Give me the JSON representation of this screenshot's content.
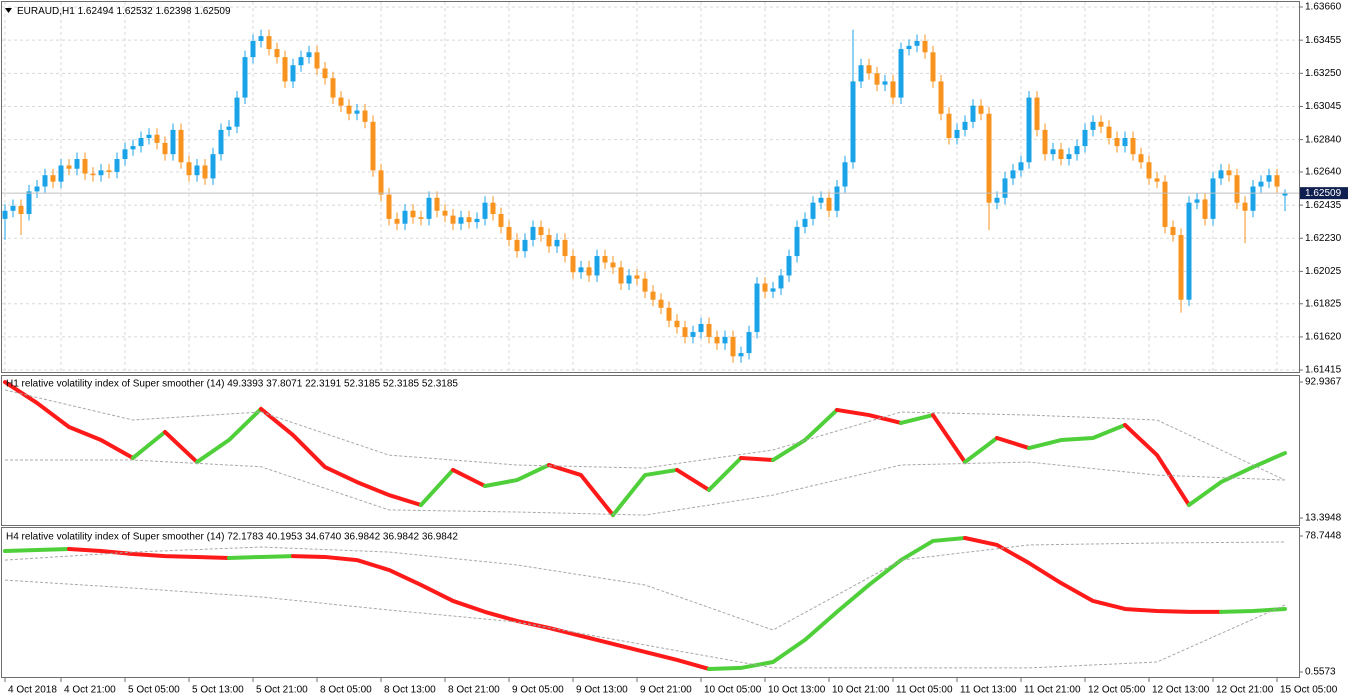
{
  "chart_data": [
    {
      "type": "candlestick",
      "title": "EURAUD,H1",
      "categories": [
        "4 Oct 2018",
        null,
        null,
        null,
        null,
        null,
        null,
        "4 Oct 21:00",
        null,
        null,
        null,
        null,
        null,
        null,
        null,
        "5 Oct 05:00",
        null,
        null,
        null,
        null,
        null,
        null,
        null,
        "5 Oct 13:00",
        null,
        null,
        null,
        null,
        null,
        null,
        null,
        "5 Oct 21:00",
        null,
        null,
        null,
        null,
        null,
        null,
        null,
        "8 Oct 05:00",
        null,
        null,
        null,
        null,
        null,
        null,
        null,
        "8 Oct 13:00",
        null,
        null,
        null,
        null,
        null,
        null,
        null,
        "8 Oct 21:00",
        null,
        null,
        null,
        null,
        null,
        null,
        null,
        "9 Oct 05:00",
        null,
        null,
        null,
        null,
        null,
        null,
        null,
        "9 Oct 13:00",
        null,
        null,
        null,
        null,
        null,
        null,
        null,
        "9 Oct 21:00",
        null,
        null,
        null,
        null,
        null,
        null,
        null,
        "10 Oct 05:00",
        null,
        null,
        null,
        null,
        null,
        null,
        null,
        "10 Oct 13:00",
        null,
        null,
        null,
        null,
        null,
        null,
        null,
        "10 Oct 21:00",
        null,
        null,
        null,
        null,
        null,
        null,
        null,
        "11 Oct 05:00",
        null,
        null,
        null,
        null,
        null,
        null,
        null,
        "11 Oct 13:00",
        null,
        null,
        null,
        null,
        null,
        null,
        null,
        "11 Oct 21:00",
        null,
        null,
        null,
        null,
        null,
        null,
        null,
        "12 Oct 05:00",
        null,
        null,
        null,
        null,
        null,
        null,
        null,
        "12 Oct 13:00",
        null,
        null,
        null,
        null,
        null,
        null,
        null,
        "12 Oct 21:00",
        null,
        null,
        null,
        null,
        null,
        null,
        null,
        "15 Oct 05:00",
        null
      ],
      "open": [
        1.6235,
        1.624,
        1.6243,
        1.6238,
        1.6252,
        1.6255,
        1.6262,
        1.6258,
        1.6268,
        1.6266,
        1.6272,
        1.6263,
        1.6262,
        1.6265,
        1.6264,
        1.6272,
        1.6278,
        1.628,
        1.6285,
        1.6287,
        1.6282,
        1.6275,
        1.629,
        1.627,
        1.6262,
        1.6268,
        1.626,
        1.6275,
        1.629,
        1.6292,
        1.631,
        1.6335,
        1.6345,
        1.6348,
        1.634,
        1.6335,
        1.632,
        1.633,
        1.6335,
        1.6338,
        1.6328,
        1.6322,
        1.631,
        1.6305,
        1.63,
        1.6302,
        1.6295,
        1.6265,
        1.625,
        1.6235,
        1.6232,
        1.624,
        1.6236,
        1.6235,
        1.6248,
        1.624,
        1.6237,
        1.6232,
        1.6236,
        1.6233,
        1.6235,
        1.6245,
        1.6238,
        1.623,
        1.6222,
        1.6215,
        1.6222,
        1.623,
        1.6225,
        1.6218,
        1.6222,
        1.6212,
        1.6202,
        1.6205,
        1.62,
        1.6212,
        1.6208,
        1.6205,
        1.6195,
        1.62,
        1.6198,
        1.619,
        1.6185,
        1.618,
        1.6172,
        1.6168,
        1.6162,
        1.6165,
        1.617,
        1.6162,
        1.6158,
        1.6162,
        1.615,
        1.6152,
        1.6165,
        1.6195,
        1.619,
        1.6192,
        1.62,
        1.6212,
        1.623,
        1.6235,
        1.6245,
        1.6248,
        1.624,
        1.6255,
        1.627,
        1.632,
        1.633,
        1.6325,
        1.6318,
        1.632,
        1.631,
        1.634,
        1.6342,
        1.6345,
        1.6338,
        1.632,
        1.63,
        1.6285,
        1.629,
        1.6295,
        1.6305,
        1.63,
        1.6245,
        1.6248,
        1.626,
        1.6265,
        1.627,
        1.631,
        1.629,
        1.6275,
        1.6278,
        1.6272,
        1.6275,
        1.628,
        1.629,
        1.6295,
        1.6292,
        1.6285,
        1.628,
        1.6285,
        1.6275,
        1.627,
        1.626,
        1.6258,
        1.623,
        1.6225,
        1.6185,
        1.6245,
        1.6247,
        1.6235,
        1.626,
        1.6265,
        1.6262,
        1.6245,
        1.624,
        1.6255,
        1.6258,
        1.6262,
        1.62494
      ],
      "high": [
        1.6244,
        1.6247,
        1.6247,
        1.6256,
        1.6259,
        1.6266,
        1.6266,
        1.6272,
        1.6272,
        1.6276,
        1.6276,
        1.6267,
        1.6269,
        1.6269,
        1.6276,
        1.6282,
        1.6284,
        1.6289,
        1.6291,
        1.6291,
        1.6286,
        1.6294,
        1.6294,
        1.6274,
        1.6272,
        1.6272,
        1.6279,
        1.6294,
        1.6296,
        1.6314,
        1.6339,
        1.6349,
        1.6352,
        1.6352,
        1.6344,
        1.6339,
        1.6334,
        1.6339,
        1.6342,
        1.6342,
        1.6332,
        1.6326,
        1.6314,
        1.6309,
        1.6306,
        1.6306,
        1.6299,
        1.6269,
        1.6254,
        1.6239,
        1.6244,
        1.6244,
        1.624,
        1.6252,
        1.6252,
        1.6244,
        1.6241,
        1.624,
        1.624,
        1.6239,
        1.6249,
        1.6249,
        1.6242,
        1.6234,
        1.6226,
        1.6226,
        1.6234,
        1.6234,
        1.6229,
        1.6226,
        1.6226,
        1.6216,
        1.6209,
        1.6209,
        1.6216,
        1.6216,
        1.6212,
        1.6209,
        1.6204,
        1.6204,
        1.6202,
        1.6194,
        1.6189,
        1.6184,
        1.6176,
        1.6172,
        1.6169,
        1.6174,
        1.6174,
        1.6166,
        1.6166,
        1.6166,
        1.6156,
        1.6169,
        1.6199,
        1.6199,
        1.6196,
        1.6204,
        1.6216,
        1.6234,
        1.6239,
        1.6249,
        1.6252,
        1.6252,
        1.6259,
        1.6274,
        1.6352,
        1.6334,
        1.6334,
        1.6329,
        1.6324,
        1.6324,
        1.6344,
        1.6346,
        1.6349,
        1.6349,
        1.6342,
        1.6324,
        1.6304,
        1.6294,
        1.6299,
        1.6309,
        1.6309,
        1.6304,
        1.6252,
        1.6264,
        1.6269,
        1.6274,
        1.6314,
        1.6314,
        1.6294,
        1.6282,
        1.6282,
        1.6279,
        1.6284,
        1.6294,
        1.6299,
        1.6299,
        1.6296,
        1.6289,
        1.6289,
        1.6289,
        1.6279,
        1.6274,
        1.6264,
        1.6262,
        1.6234,
        1.6229,
        1.6249,
        1.6251,
        1.6251,
        1.6264,
        1.6269,
        1.6269,
        1.6266,
        1.6249,
        1.6259,
        1.6262,
        1.6266,
        1.6266,
        1.62532
      ],
      "low": [
        1.6222,
        1.6236,
        1.6225,
        1.6234,
        1.6248,
        1.6251,
        1.6254,
        1.6254,
        1.6262,
        1.6262,
        1.6259,
        1.6258,
        1.6258,
        1.626,
        1.626,
        1.6268,
        1.6274,
        1.6276,
        1.6281,
        1.6278,
        1.6271,
        1.6271,
        1.6266,
        1.6258,
        1.6258,
        1.6256,
        1.6256,
        1.6271,
        1.6286,
        1.6288,
        1.6306,
        1.6331,
        1.6341,
        1.6336,
        1.6331,
        1.6316,
        1.6316,
        1.6326,
        1.6331,
        1.6324,
        1.6318,
        1.6306,
        1.6301,
        1.6296,
        1.6296,
        1.6291,
        1.6261,
        1.6246,
        1.6231,
        1.6228,
        1.6228,
        1.6232,
        1.6231,
        1.6231,
        1.6236,
        1.6233,
        1.6228,
        1.6228,
        1.6229,
        1.6229,
        1.6231,
        1.6234,
        1.6226,
        1.6218,
        1.6211,
        1.6211,
        1.6218,
        1.6221,
        1.6214,
        1.6214,
        1.6208,
        1.6198,
        1.6198,
        1.6196,
        1.6196,
        1.6204,
        1.6201,
        1.6191,
        1.6191,
        1.6194,
        1.6186,
        1.6181,
        1.6176,
        1.6168,
        1.6164,
        1.6158,
        1.6158,
        1.6161,
        1.6158,
        1.6154,
        1.6154,
        1.6146,
        1.6146,
        1.6148,
        1.6161,
        1.6186,
        1.6186,
        1.6188,
        1.6196,
        1.6208,
        1.6226,
        1.6231,
        1.6241,
        1.6236,
        1.6236,
        1.6251,
        1.6266,
        1.6316,
        1.6321,
        1.6314,
        1.6314,
        1.6306,
        1.6306,
        1.6336,
        1.6338,
        1.6334,
        1.6316,
        1.6296,
        1.6281,
        1.6281,
        1.6286,
        1.6291,
        1.6296,
        1.6228,
        1.6241,
        1.6244,
        1.6256,
        1.6261,
        1.6266,
        1.6286,
        1.6271,
        1.6271,
        1.6268,
        1.6268,
        1.6271,
        1.6276,
        1.6286,
        1.6288,
        1.6281,
        1.6276,
        1.6276,
        1.6271,
        1.6266,
        1.6256,
        1.6254,
        1.6226,
        1.6221,
        1.6177,
        1.6181,
        1.6241,
        1.6231,
        1.6231,
        1.6256,
        1.6258,
        1.6241,
        1.622,
        1.6236,
        1.6251,
        1.6254,
        1.6251,
        1.62398
      ],
      "close": [
        1.624,
        1.6243,
        1.6238,
        1.6252,
        1.6255,
        1.6262,
        1.6258,
        1.6268,
        1.6266,
        1.6272,
        1.6263,
        1.6262,
        1.6265,
        1.6264,
        1.6272,
        1.6278,
        1.628,
        1.6285,
        1.6287,
        1.6282,
        1.6275,
        1.629,
        1.627,
        1.6262,
        1.6268,
        1.626,
        1.6275,
        1.629,
        1.6292,
        1.631,
        1.6335,
        1.6345,
        1.6348,
        1.634,
        1.6335,
        1.632,
        1.633,
        1.6335,
        1.6338,
        1.6328,
        1.6322,
        1.631,
        1.6305,
        1.63,
        1.6302,
        1.6295,
        1.6265,
        1.625,
        1.6235,
        1.6232,
        1.624,
        1.6236,
        1.6235,
        1.6248,
        1.624,
        1.6237,
        1.6232,
        1.6236,
        1.6233,
        1.6235,
        1.6245,
        1.6238,
        1.623,
        1.6222,
        1.6215,
        1.6222,
        1.623,
        1.6225,
        1.6218,
        1.6222,
        1.6212,
        1.6202,
        1.6205,
        1.62,
        1.6212,
        1.6208,
        1.6205,
        1.6195,
        1.62,
        1.6198,
        1.619,
        1.6185,
        1.618,
        1.6172,
        1.6168,
        1.6162,
        1.6165,
        1.617,
        1.6162,
        1.6158,
        1.6162,
        1.615,
        1.6152,
        1.6165,
        1.6195,
        1.619,
        1.6192,
        1.62,
        1.6212,
        1.623,
        1.6235,
        1.6245,
        1.6248,
        1.624,
        1.6255,
        1.627,
        1.632,
        1.633,
        1.6325,
        1.6318,
        1.632,
        1.631,
        1.634,
        1.6342,
        1.6345,
        1.6338,
        1.632,
        1.63,
        1.6285,
        1.629,
        1.6295,
        1.6305,
        1.63,
        1.6245,
        1.6248,
        1.626,
        1.6265,
        1.627,
        1.631,
        1.629,
        1.6275,
        1.6278,
        1.6272,
        1.6275,
        1.628,
        1.629,
        1.6295,
        1.6292,
        1.6285,
        1.628,
        1.6285,
        1.6275,
        1.627,
        1.626,
        1.6258,
        1.623,
        1.6225,
        1.6185,
        1.6245,
        1.6247,
        1.6235,
        1.626,
        1.6265,
        1.6262,
        1.6245,
        1.624,
        1.6255,
        1.6258,
        1.6262,
        1.6255,
        1.62509
      ],
      "up_color": "#1ba3e8",
      "down_color": "#f7931e",
      "ylim": [
        1.61403,
        1.63691
      ],
      "yticks": [
        {
          "value": 1.6366,
          "label": "1.63660"
        },
        {
          "value": 1.63455,
          "label": "1.63455"
        },
        {
          "value": 1.6325,
          "label": "1.63250"
        },
        {
          "value": 1.63045,
          "label": "1.63045"
        },
        {
          "value": 1.6284,
          "label": "1.62840"
        },
        {
          "value": 1.6264,
          "label": "1.62640"
        },
        {
          "value": 1.62435,
          "label": "1.62435"
        },
        {
          "value": 1.6223,
          "label": "1.62230"
        },
        {
          "value": 1.62025,
          "label": "1.62025"
        },
        {
          "value": 1.61825,
          "label": "1.61825"
        },
        {
          "value": 1.6162,
          "label": "1.61620"
        },
        {
          "value": 1.61415,
          "label": "1.61415"
        }
      ],
      "grid": true
    },
    {
      "type": "line",
      "title": "H1 relative volatility index of Super smoother (14) 49.3393 37.8071 22.3191 52.3185 52.3185 52.3185",
      "ylim": [
        9.3,
        96.45
      ],
      "yticks": [
        92.9367,
        13.3948
      ],
      "series": [
        {
          "values": [
            92.9,
            80.7,
            66.6,
            59.0,
            48.5,
            63.7,
            46.1,
            59.0,
            77.2,
            61.9,
            43.2,
            34.4,
            26.8,
            21.0,
            41.5,
            32.1,
            35.6,
            44.4,
            38.5,
            15.1,
            38.5,
            41.5,
            29.8,
            48.5,
            47.3,
            59.0,
            76.6,
            73.6,
            69.0,
            73.6,
            46.1,
            60.2,
            54.3,
            59.0,
            60.2,
            67.8,
            50.2,
            21.0,
            34.4,
            43.2,
            51.4
          ],
          "up_color": "#4fcf3a",
          "down_color": "#ff1a1a"
        },
        {
          "values": [
            88.3,
            70.7,
            75.4,
            50.2,
            44.4,
            42.6,
            53.2,
            75.4,
            73.6,
            70.7,
            35.6
          ],
          "color": "#a8a8a8",
          "dash": true
        },
        {
          "values": [
            47.3,
            47.3,
            43.4,
            18.1,
            16.9,
            15.1,
            26.8,
            44.4,
            46.1,
            38.5,
            35.6
          ],
          "color": "#a8a8a8",
          "dash": true
        }
      ]
    },
    {
      "type": "line",
      "title": "H4 relative volatility index of Super smoother (14) 72.1783 40.1953 34.6740 36.9842 36.9842 36.9842",
      "ylim": [
        -2.32,
        83.34
      ],
      "yticks": [
        78.7448,
        0.5573
      ],
      "series": [
        {
          "values": [
            70.1,
            70.7,
            71.3,
            70.1,
            68.4,
            67.2,
            66.7,
            66.1,
            66.7,
            67.2,
            66.7,
            64.9,
            59.2,
            50.6,
            41.4,
            35.1,
            29.9,
            25.9,
            21.3,
            16.7,
            12.1,
            7.5,
            2.3,
            2.9,
            6.3,
            19.0,
            35.1,
            50.6,
            64.9,
            75.9,
            77.6,
            73.6,
            63.2,
            51.7,
            41.4,
            36.8,
            35.6,
            35.1,
            35.1,
            35.6,
            36.8
          ],
          "up_color": "#4fcf3a",
          "down_color": "#ff1a1a"
        },
        {
          "values": [
            64.9,
            69.5,
            72.4,
            69.5,
            62.1,
            50.6,
            24.7,
            64.9,
            73.6,
            74.7,
            75.3
          ],
          "color": "#a8a8a8",
          "dash": true
        },
        {
          "values": [
            53.4,
            48.8,
            43.7,
            36.2,
            29.3,
            16.1,
            2.9,
            2.9,
            2.9,
            6.3,
            39.1
          ],
          "color": "#a8a8a8",
          "dash": true
        }
      ]
    }
  ]
}
